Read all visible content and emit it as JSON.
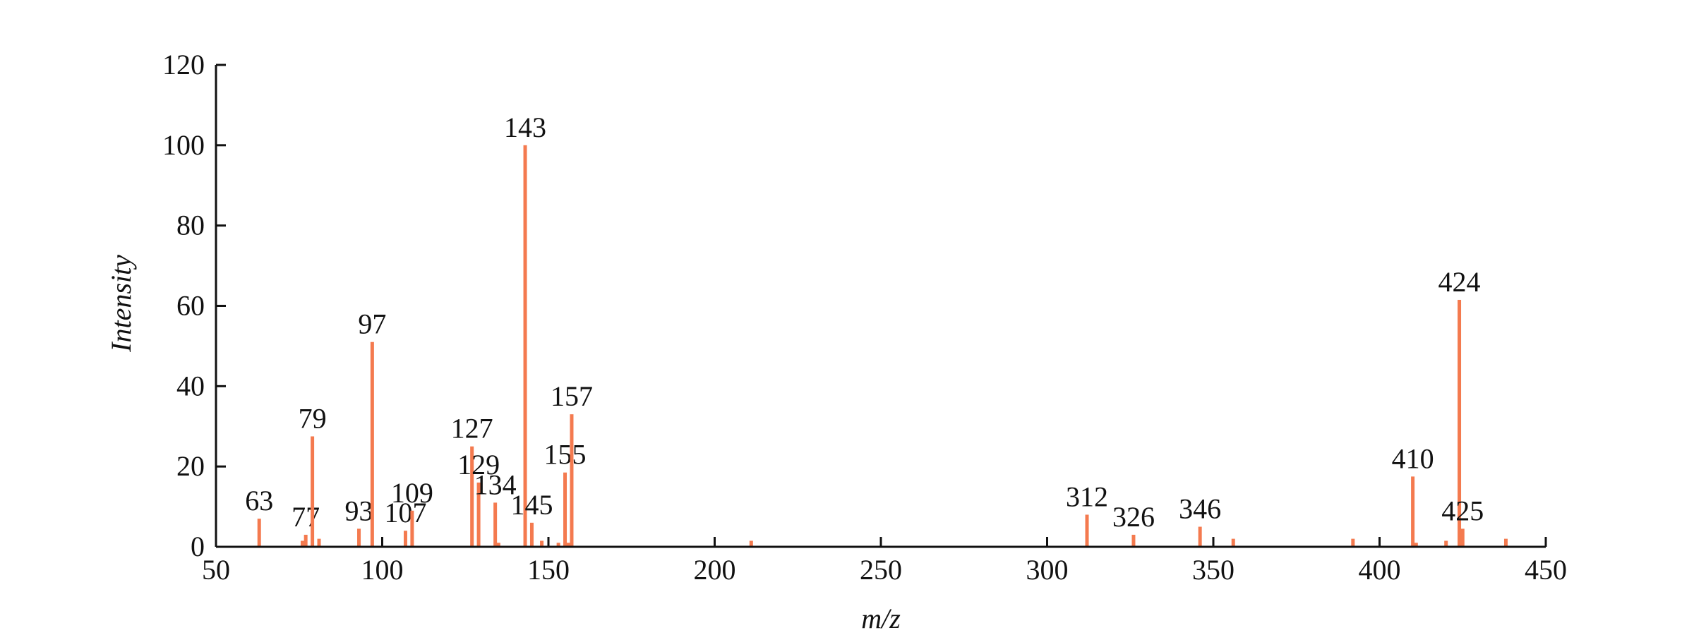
{
  "chart_data": {
    "type": "stem",
    "x_label": "m/z",
    "y_label": "Intensity",
    "xlim": [
      50,
      450
    ],
    "xticks": [
      50,
      100,
      150,
      200,
      250,
      300,
      350,
      400,
      450
    ],
    "ylim": [
      0,
      120
    ],
    "yticks": [
      0,
      20,
      40,
      60,
      80,
      100,
      120
    ],
    "series": [
      {
        "color": "#f47a4f",
        "show_labels": true,
        "x": [
          63,
          77,
          79,
          93,
          97,
          107,
          109,
          127,
          129,
          134,
          143,
          145,
          155,
          157,
          312,
          326,
          346,
          410,
          424,
          425
        ],
        "values": [
          7,
          3,
          27.5,
          4.5,
          51,
          4,
          9,
          25,
          16,
          11,
          100,
          6,
          18.5,
          33,
          8,
          3,
          5,
          17.5,
          61.5,
          4.5
        ]
      },
      {
        "color": "#f47a4f",
        "show_labels": false,
        "x": [
          76,
          81,
          135,
          148,
          153,
          156,
          211,
          356,
          392,
          411,
          420,
          438
        ],
        "values": [
          1.5,
          2,
          1,
          1.5,
          1,
          1,
          1.5,
          2,
          2,
          1,
          1.5,
          2
        ]
      }
    ]
  }
}
